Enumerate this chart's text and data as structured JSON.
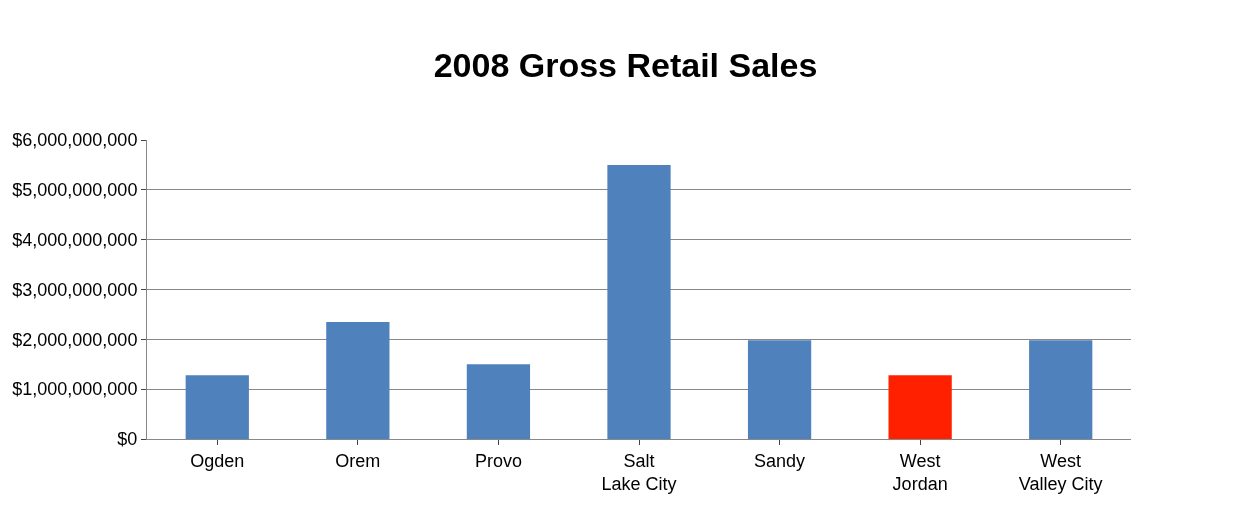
{
  "chart_data": {
    "type": "bar",
    "title": "2008 Gross Retail Sales",
    "categories": [
      "Ogden",
      "Orem",
      "Provo",
      "Salt Lake City",
      "Sandy",
      "West Jordan",
      "West Valley City"
    ],
    "values": [
      1280000000,
      2350000000,
      1500000000,
      5500000000,
      1980000000,
      1280000000,
      1980000000
    ],
    "colors": [
      "#4f81bd",
      "#4f81bd",
      "#4f81bd",
      "#4f81bd",
      "#4f81bd",
      "#ff2000",
      "#4f81bd"
    ],
    "ylim": [
      0,
      6000000000
    ],
    "yticks": [
      {
        "value": 0,
        "label": "$0"
      },
      {
        "value": 1000000000,
        "label": "$1,000,000,000"
      },
      {
        "value": 2000000000,
        "label": "$2,000,000,000"
      },
      {
        "value": 3000000000,
        "label": "$3,000,000,000"
      },
      {
        "value": 4000000000,
        "label": "$4,000,000,000"
      },
      {
        "value": 5000000000,
        "label": "$5,000,000,000"
      },
      {
        "value": 6000000000,
        "label": "$6,000,000,000"
      }
    ],
    "grid": "y"
  }
}
